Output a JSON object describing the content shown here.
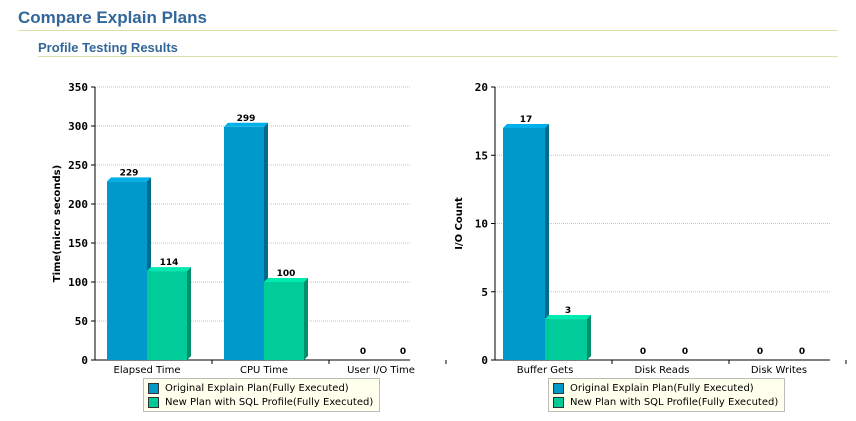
{
  "header": {
    "title": "Compare Explain Plans",
    "section_title": "Profile Testing Results"
  },
  "colors": {
    "original": "#0099cc",
    "new_plan": "#00cc99",
    "gridline": "#c8d270",
    "title": "#336699"
  },
  "chart_data": [
    {
      "type": "bar",
      "categories": [
        "Elapsed Time",
        "CPU Time",
        "User I/O Time"
      ],
      "series": [
        {
          "name": "Original Explain Plan(Fully Executed)",
          "values": [
            229,
            299,
            0
          ]
        },
        {
          "name": "New Plan with SQL Profile(Fully Executed)",
          "values": [
            114,
            100,
            0
          ]
        }
      ],
      "ylabel": "Time(micro seconds)",
      "ylim": [
        0,
        350
      ],
      "yticks": [
        0,
        50,
        100,
        150,
        200,
        250,
        300,
        350
      ],
      "grid": true,
      "legend_position": "bottom"
    },
    {
      "type": "bar",
      "categories": [
        "Buffer Gets",
        "Disk Reads",
        "Disk Writes"
      ],
      "series": [
        {
          "name": "Original Explain Plan(Fully Executed)",
          "values": [
            17,
            0,
            0
          ]
        },
        {
          "name": "New Plan with SQL Profile(Fully Executed)",
          "values": [
            3,
            0,
            0
          ]
        }
      ],
      "ylabel": "I/O Count",
      "ylim": [
        0,
        20
      ],
      "yticks": [
        0,
        5,
        10,
        15,
        20
      ],
      "grid": true,
      "legend_position": "bottom"
    }
  ]
}
